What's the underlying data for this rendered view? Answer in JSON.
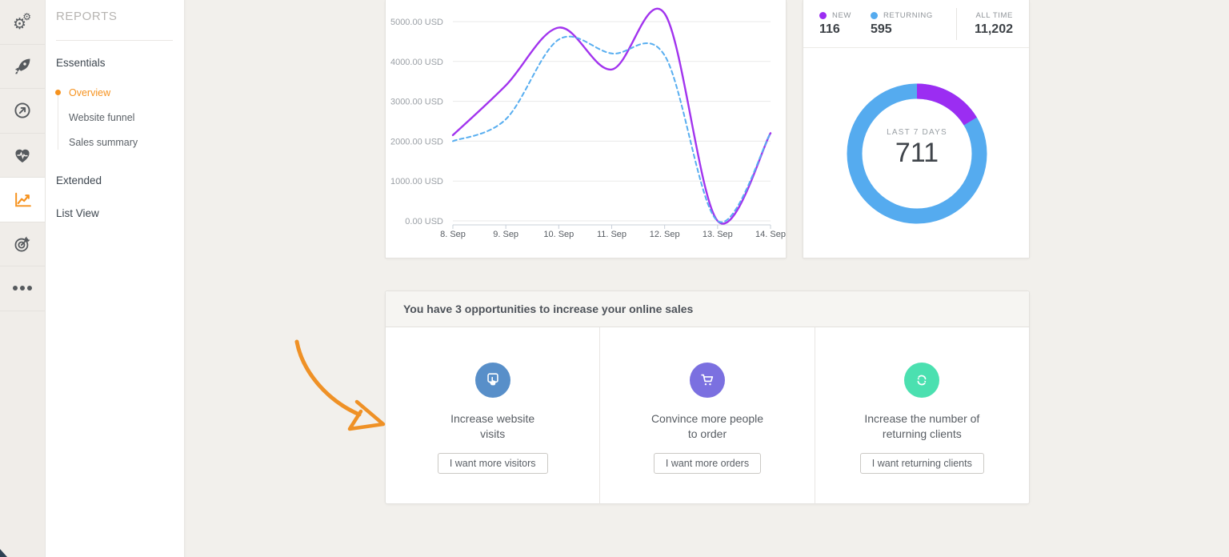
{
  "colors": {
    "accent_orange": "#f6921e",
    "chart_purple": "#a234ee",
    "chart_blue": "#58aef0",
    "donut_purple": "#9b2df2",
    "donut_blue": "#55abef",
    "opp_blue": "#588fc9",
    "opp_purple": "#7b70e0",
    "opp_teal": "#4be0b0",
    "arrow_orange": "#ef9126"
  },
  "rail": {
    "items": [
      {
        "id": "settings",
        "icon": "settings-gears-icon",
        "active": false
      },
      {
        "id": "launch",
        "icon": "rocket-icon",
        "active": false
      },
      {
        "id": "growth",
        "icon": "circle-arrow-icon",
        "active": false
      },
      {
        "id": "health",
        "icon": "heart-pulse-icon",
        "active": false
      },
      {
        "id": "reports",
        "icon": "line-chart-icon",
        "active": true
      },
      {
        "id": "goals",
        "icon": "target-dart-icon",
        "active": false
      },
      {
        "id": "more",
        "icon": "ellipsis-icon",
        "active": false
      }
    ]
  },
  "sidebar": {
    "title": "REPORTS",
    "sections": [
      {
        "label": "Essentials",
        "items": [
          {
            "label": "Overview",
            "active": true
          },
          {
            "label": "Website funnel",
            "active": false
          },
          {
            "label": "Sales summary",
            "active": false
          }
        ]
      },
      {
        "label": "Extended",
        "items": []
      },
      {
        "label": "List View",
        "items": []
      }
    ]
  },
  "chart_data": [
    {
      "type": "line",
      "title": "",
      "x": [
        "8. Sep",
        "9. Sep",
        "10. Sep",
        "11. Sep",
        "12. Sep",
        "13. Sep",
        "14. Sep"
      ],
      "y_ticks": {
        "values": [
          0,
          1000,
          2000,
          3000,
          4000,
          5000
        ],
        "labels": [
          "0.00 USD",
          "1000.00 USD",
          "2000.00 USD",
          "3000.00 USD",
          "4000.00 USD",
          "5000.00 USD"
        ]
      },
      "ylim": [
        0,
        5300
      ],
      "grid": true,
      "legend_position": "none",
      "series": [
        {
          "name": "sales-purple-solid",
          "color": "#a234ee",
          "style": "solid",
          "values": [
            2150,
            3400,
            4850,
            3800,
            5200,
            0,
            2200
          ]
        },
        {
          "name": "sales-blue-dashed",
          "color": "#58aef0",
          "style": "dashed",
          "values": [
            2000,
            2550,
            4550,
            4200,
            4150,
            0,
            2200
          ]
        }
      ]
    },
    {
      "type": "pie",
      "subtype": "donut",
      "center_label": "LAST 7 DAYS",
      "center_value": "711",
      "slices": [
        {
          "label": "NEW",
          "value": 116,
          "color": "#9b2df2"
        },
        {
          "label": "RETURNING",
          "value": 595,
          "color": "#55abef"
        }
      ],
      "all_time_total": 11202
    }
  ],
  "clients_panel": {
    "legend": [
      {
        "label": "NEW",
        "value": "116",
        "color": "#9b2df2"
      },
      {
        "label": "RETURNING",
        "value": "595",
        "color": "#55abef"
      }
    ],
    "all_time": {
      "label": "ALL TIME",
      "value": "11,202"
    },
    "donut_center": {
      "label": "LAST 7 DAYS",
      "value": "711"
    }
  },
  "opportunities": {
    "title": "You have 3 opportunities to increase your online sales",
    "cards": [
      {
        "icon": "tap-click-icon",
        "color": "#588fc9",
        "caption_lines": [
          "Increase website",
          "visits"
        ],
        "button": "I want more visitors"
      },
      {
        "icon": "shopping-cart-icon",
        "color": "#7b70e0",
        "caption_lines": [
          "Convince more people",
          "to order"
        ],
        "button": "I want more orders"
      },
      {
        "icon": "refresh-icon",
        "color": "#4be0b0",
        "caption_lines": [
          "Increase the number of",
          "returning clients"
        ],
        "button": "I want returning clients"
      }
    ]
  }
}
